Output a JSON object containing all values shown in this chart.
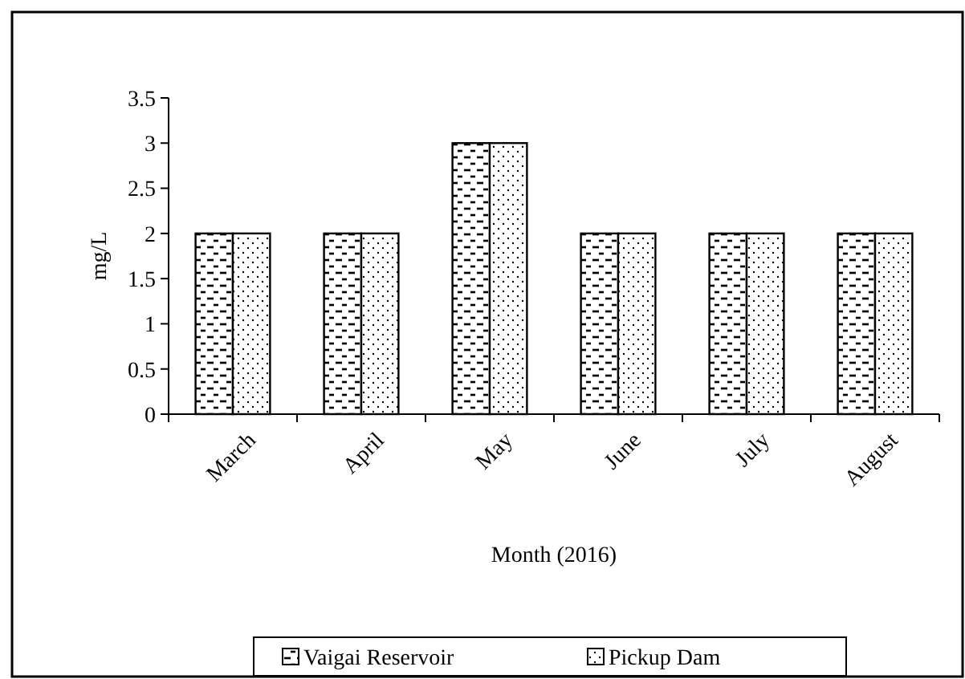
{
  "chart_data": {
    "type": "bar",
    "xlabel": "Month (2016)",
    "ylabel": "mg/L",
    "categories": [
      "March",
      "April",
      "May",
      "June",
      "July",
      "August"
    ],
    "series": [
      {
        "name": "Vaigai Reservoir",
        "color": "#000000",
        "values": [
          2,
          2,
          3,
          2,
          2,
          2
        ]
      },
      {
        "name": "Pickup Dam",
        "color": "#000000",
        "values": [
          2,
          2,
          3,
          2,
          2,
          2
        ]
      }
    ],
    "ylim": [
      0,
      3.5
    ],
    "yticks": [
      0,
      0.5,
      1,
      1.5,
      2,
      2.5,
      3,
      3.5
    ],
    "grid": false,
    "legend": "bottom"
  }
}
